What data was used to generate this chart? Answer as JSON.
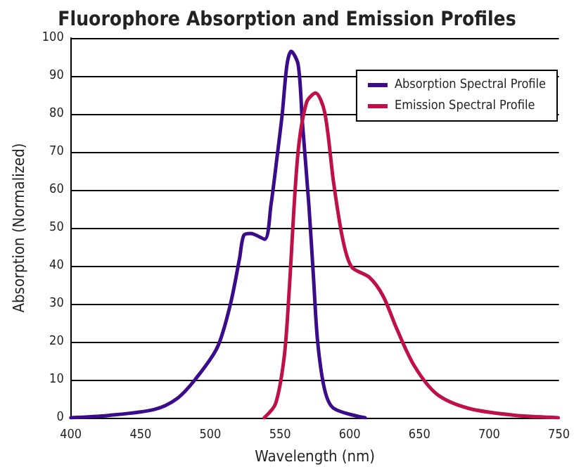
{
  "chart_data": {
    "type": "line",
    "title": "Fluorophore Absorption and Emission Profiles",
    "xlabel": "Wavelength (nm)",
    "ylabel": "Absorption (Normalized)",
    "xlim": [
      400,
      750
    ],
    "xticks": [
      400,
      450,
      500,
      550,
      600,
      650,
      700,
      750
    ],
    "ylim": [
      0,
      100
    ],
    "yticks": [
      0,
      10,
      20,
      30,
      40,
      50,
      60,
      70,
      80,
      90,
      100
    ],
    "grid": "y",
    "legend": "top right",
    "marker": "none",
    "line_style": "solid",
    "series": [
      {
        "name": "Absorption Spectral Profile",
        "color": "#3a0c8c",
        "x": [
          400,
          427,
          460,
          476,
          489,
          505,
          514.5,
          521,
          524,
          529,
          539,
          543.5,
          548,
          551.6,
          555,
          558,
          563,
          566,
          570.7,
          574,
          577,
          582,
          588.4,
          611
        ],
        "values": [
          0,
          0.6,
          2.2,
          5,
          10,
          18.5,
          30,
          42,
          48,
          48.5,
          47,
          56,
          69,
          80,
          93,
          96.5,
          93,
          78,
          56,
          37,
          20,
          7.4,
          2.5,
          0
        ]
      },
      {
        "name": "Emission Spectral Profile",
        "color": "#c0104a",
        "x": [
          538.7,
          546.8,
          553,
          556.5,
          562.7,
          569,
          575.5,
          582,
          588.4,
          595,
          601.4,
          614,
          624,
          633.5,
          646.4,
          662.5,
          685,
          717,
          749.5
        ],
        "values": [
          0,
          3.7,
          16,
          33,
          69,
          83,
          85.5,
          80.5,
          62,
          47,
          39.7,
          37,
          32,
          23.6,
          13.6,
          6.2,
          2.5,
          0.7,
          0
        ]
      }
    ]
  }
}
